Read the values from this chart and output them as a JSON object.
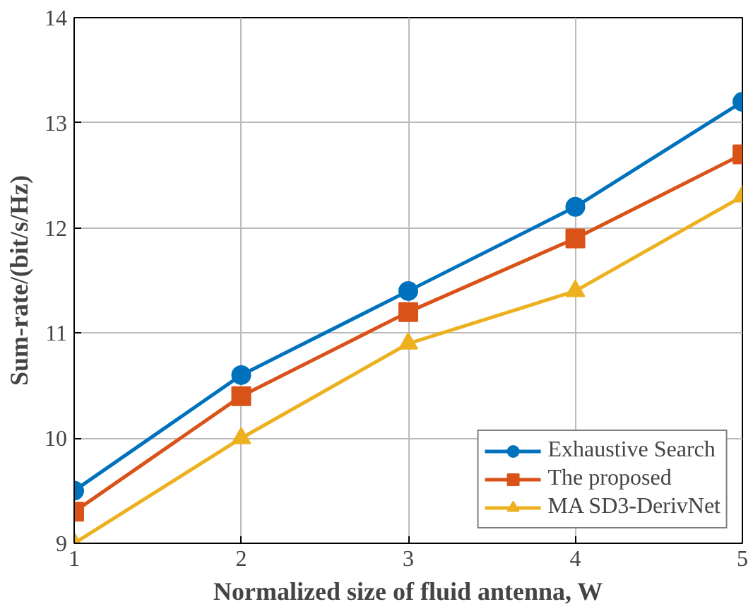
{
  "chart_data": {
    "type": "line",
    "xlabel": "Normalized size of fluid antenna, W",
    "ylabel": "Sum-rate/(bit/s/Hz)",
    "x": [
      1,
      2,
      3,
      4,
      5
    ],
    "xlim": [
      1,
      5
    ],
    "xticks": [
      1,
      2,
      3,
      4,
      5
    ],
    "ylim": [
      9,
      14
    ],
    "yticks": [
      9,
      10,
      11,
      12,
      13,
      14
    ],
    "grid": true,
    "legend": "bottom right",
    "line_style": "solid",
    "series": [
      {
        "name": "Exhaustive Search",
        "color": "#0072bd",
        "marker": "circle",
        "values": [
          9.5,
          10.6,
          11.4,
          12.2,
          13.2
        ]
      },
      {
        "name": "The proposed",
        "color": "#d95319",
        "marker": "square",
        "values": [
          9.3,
          10.4,
          11.2,
          11.9,
          12.7
        ]
      },
      {
        "name": "MA SD3-DerivNet",
        "color": "#edb120",
        "marker": "triangle",
        "values": [
          9.0,
          10.0,
          10.9,
          11.4,
          12.3
        ]
      }
    ]
  }
}
